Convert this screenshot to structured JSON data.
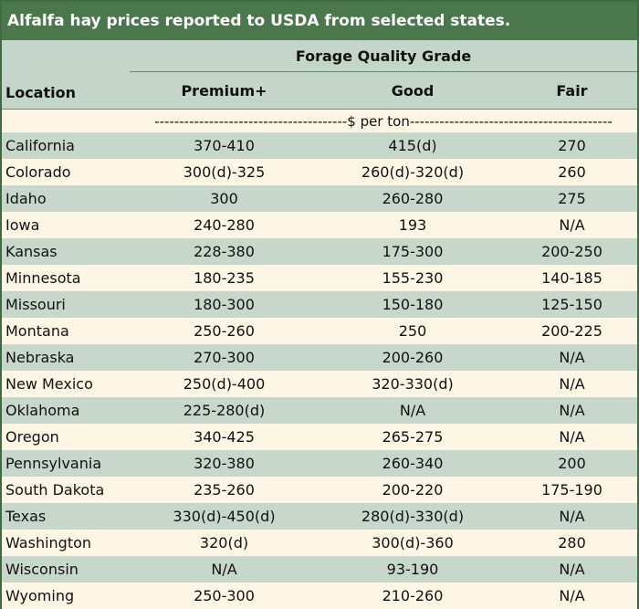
{
  "title": "Alfalfa hay prices reported to USDA from selected states.",
  "header": {
    "group_label": "Forage Quality Grade",
    "location_label": "Location",
    "columns": [
      "Premium+",
      "Good",
      "Fair"
    ]
  },
  "unit_line": "---------------------------------------$ per ton-----------------------------------------",
  "colors": {
    "title_bar": "#4a784c",
    "header_bg": "#c4d5ca",
    "stripe": "#c7d7cb",
    "cream": "#fdf6e4"
  },
  "rows": [
    {
      "location": "California",
      "premium": "370-410",
      "good": "415(d)",
      "fair": "270"
    },
    {
      "location": "Colorado",
      "premium": "300(d)-325",
      "good": "260(d)-320(d)",
      "fair": "260"
    },
    {
      "location": "Idaho",
      "premium": "300",
      "good": "260-280",
      "fair": "275"
    },
    {
      "location": "Iowa",
      "premium": "240-280",
      "good": "193",
      "fair": "N/A"
    },
    {
      "location": "Kansas",
      "premium": "228-380",
      "good": "175-300",
      "fair": "200-250"
    },
    {
      "location": "Minnesota",
      "premium": "180-235",
      "good": "155-230",
      "fair": "140-185"
    },
    {
      "location": "Missouri",
      "premium": "180-300",
      "good": "150-180",
      "fair": "125-150"
    },
    {
      "location": "Montana",
      "premium": "250-260",
      "good": "250",
      "fair": "200-225"
    },
    {
      "location": "Nebraska",
      "premium": "270-300",
      "good": "200-260",
      "fair": "N/A"
    },
    {
      "location": "New Mexico",
      "premium": "250(d)-400",
      "good": "320-330(d)",
      "fair": "N/A"
    },
    {
      "location": "Oklahoma",
      "premium": "225-280(d)",
      "good": "N/A",
      "fair": "N/A"
    },
    {
      "location": "Oregon",
      "premium": "340-425",
      "good": "265-275",
      "fair": "N/A"
    },
    {
      "location": "Pennsylvania",
      "premium": "320-380",
      "good": "260-340",
      "fair": "200"
    },
    {
      "location": "South Dakota",
      "premium": "235-260",
      "good": "200-220",
      "fair": "175-190"
    },
    {
      "location": "Texas",
      "premium": "330(d)-450(d)",
      "good": "280(d)-330(d)",
      "fair": "N/A"
    },
    {
      "location": "Washington",
      "premium": "320(d)",
      "good": "300(d)-360",
      "fair": "280"
    },
    {
      "location": "Wisconsin",
      "premium": "N/A",
      "good": "93-190",
      "fair": "N/A"
    },
    {
      "location": "Wyoming",
      "premium": "250-300",
      "good": "210-260",
      "fair": "N/A"
    }
  ]
}
